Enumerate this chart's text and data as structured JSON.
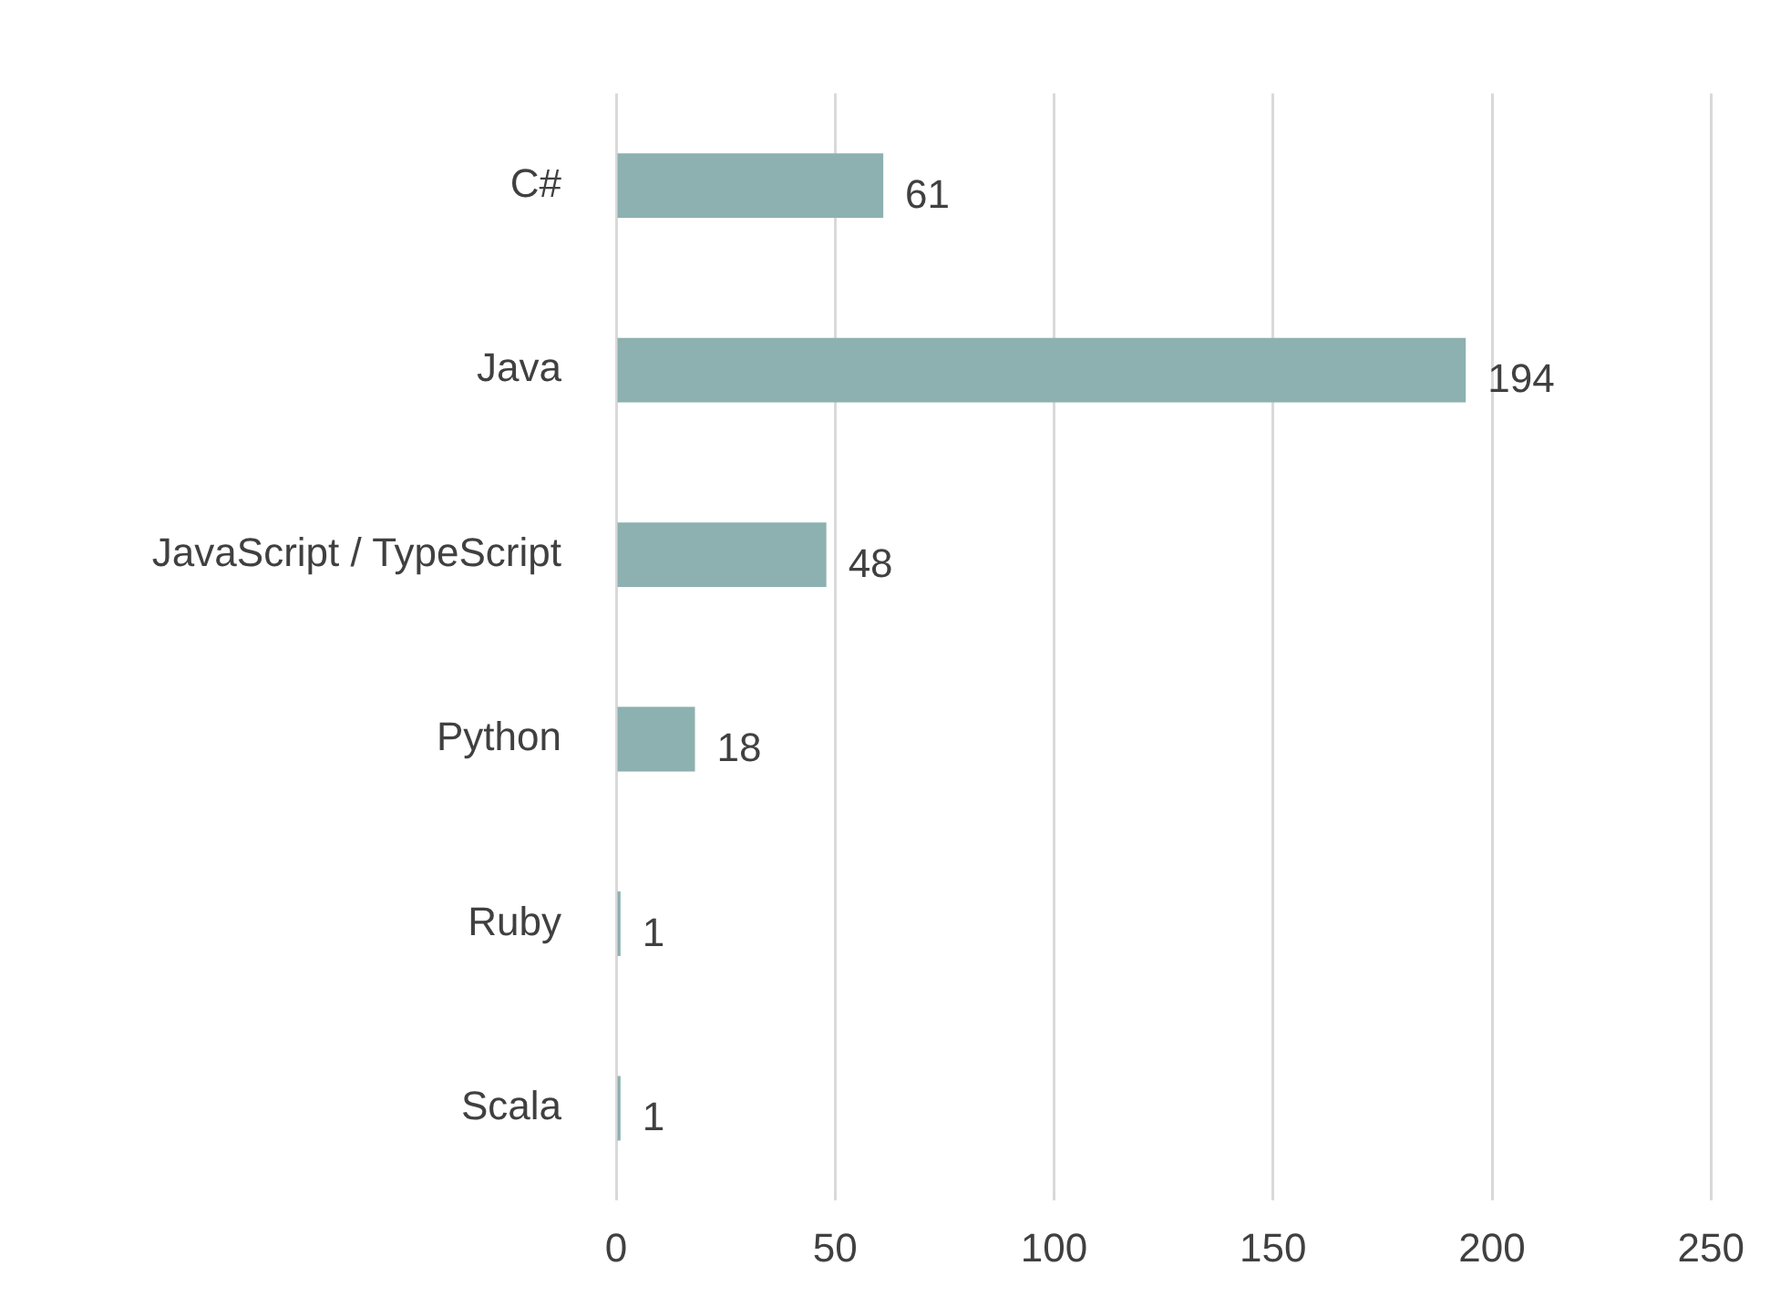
{
  "chart_data": {
    "type": "bar",
    "orientation": "horizontal",
    "categories": [
      "C#",
      "Java",
      "JavaScript / TypeScript",
      "Python",
      "Ruby",
      "Scala"
    ],
    "values": [
      61,
      194,
      48,
      18,
      1,
      1
    ],
    "color": "#8db1b0",
    "xlim": [
      0,
      250
    ],
    "xticks": [
      0,
      50,
      100,
      150,
      200,
      250
    ],
    "grid": "x",
    "data_labels": true,
    "legend": false
  }
}
